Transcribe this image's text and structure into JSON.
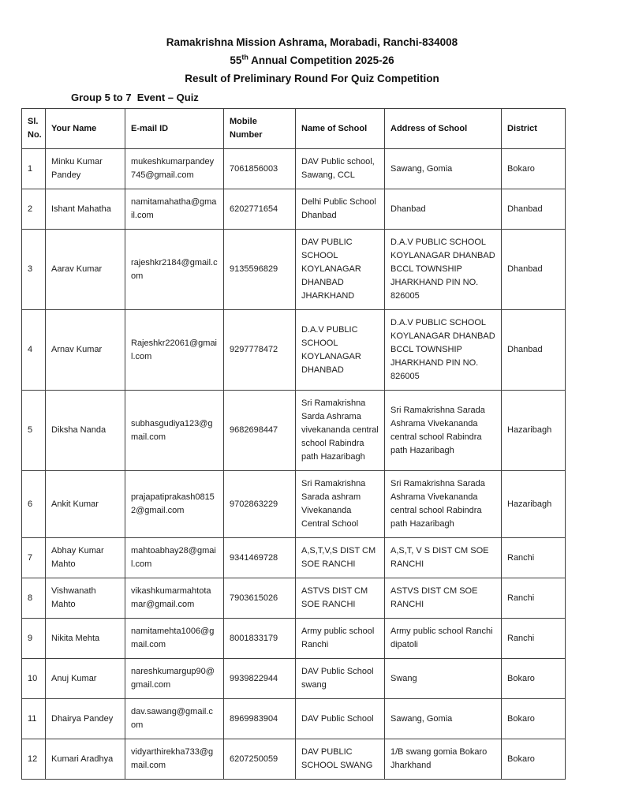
{
  "header": {
    "title_line1": "Ramakrishna Mission Ashrama, Morabadi, Ranchi-834008",
    "title_line2_num": "55",
    "title_line2_sup": "th",
    "title_line2_rest": " Annual Competition 2025-26",
    "title_line3": "Result of Preliminary Round For Quiz Competition",
    "group_line": "Group 5 to 7  Event – Quiz"
  },
  "table": {
    "columns": {
      "sl": "Sl. No.",
      "name": "Your Name",
      "email": "E-mail ID",
      "mobile": "Mobile Number",
      "school": "Name of School",
      "address": "Address of  School",
      "district": "District"
    },
    "rows": [
      {
        "sl": "1",
        "name": "Minku Kumar Pandey",
        "email": "mukeshkumarpandey745@gmail.com",
        "mobile": "7061856003",
        "school": "DAV Public school, Sawang, CCL",
        "address": "Sawang, Gomia",
        "district": "Bokaro"
      },
      {
        "sl": "2",
        "name": "Ishant Mahatha",
        "email": "namitamahatha@gmail.com",
        "mobile": "6202771654",
        "school": "Delhi Public School Dhanbad",
        "address": "Dhanbad",
        "district": "Dhanbad"
      },
      {
        "sl": "3",
        "name": "Aarav Kumar",
        "email": "rajeshkr2184@gmail.com",
        "mobile": "9135596829",
        "school": "DAV PUBLIC SCHOOL KOYLANAGAR DHANBAD JHARKHAND",
        "address": "D.A.V PUBLIC SCHOOL KOYLANAGAR DHANBAD BCCL TOWNSHIP JHARKHAND PIN NO. 826005",
        "district": "Dhanbad"
      },
      {
        "sl": "4",
        "name": "Arnav Kumar",
        "email": "Rajeshkr22061@gmail.com",
        "mobile": "9297778472",
        "school": "D.A.V PUBLIC SCHOOL KOYLANAGAR DHANBAD",
        "address": "D.A.V PUBLIC SCHOOL KOYLANAGAR DHANBAD BCCL TOWNSHIP JHARKHAND PIN NO. 826005",
        "district": "Dhanbad"
      },
      {
        "sl": "5",
        "name": "Diksha Nanda",
        "email": "subhasgudiya123@gmail.com",
        "mobile": "9682698447",
        "school": "Sri Ramakrishna Sarda Ashrama vivekananda central school Rabindra path Hazaribagh",
        "address": "Sri Ramakrishna Sarada Ashrama Vivekananda central school Rabindra path Hazaribagh",
        "district": "Hazaribagh"
      },
      {
        "sl": "6",
        "name": "Ankit Kumar",
        "email": "prajapatiprakash08152@gmail.com",
        "mobile": "9702863229",
        "school": "Sri Ramakrishna Sarada ashram Vivekananda Central School",
        "address": "Sri Ramakrishna Sarada Ashrama Vivekananda central school Rabindra path Hazaribagh",
        "district": "Hazaribagh"
      },
      {
        "sl": "7",
        "name": "Abhay Kumar Mahto",
        "email": "mahtoabhay28@gmail.com",
        "mobile": "9341469728",
        "school": "A,S,T,V,S DIST CM SOE RANCHI",
        "address": "A,S,T, V S DIST CM SOE RANCHI",
        "district": "Ranchi"
      },
      {
        "sl": "8",
        "name": "Vishwanath Mahto",
        "email": "vikashkumarmahtotamar@gmail.com",
        "mobile": "7903615026",
        "school": "ASTVS DIST CM SOE RANCHI",
        "address": "ASTVS DIST CM SOE RANCHI",
        "district": "Ranchi"
      },
      {
        "sl": "9",
        "name": "Nikita Mehta",
        "email": "namitamehta1006@gmail.com",
        "mobile": "8001833179",
        "school": "Army public school Ranchi",
        "address": "Army public school Ranchi dipatoli",
        "district": "Ranchi"
      },
      {
        "sl": "10",
        "name": "Anuj Kumar",
        "email": "nareshkumargup90@gmail.com",
        "mobile": "9939822944",
        "school": "DAV Public School swang",
        "address": "Swang",
        "district": "Bokaro"
      },
      {
        "sl": "11",
        "name": "Dhairya Pandey",
        "email": "dav.sawang@gmail.com",
        "mobile": "8969983904",
        "school": "DAV Public School",
        "address": "Sawang, Gomia",
        "district": "Bokaro"
      },
      {
        "sl": "12",
        "name": "Kumari Aradhya",
        "email": "vidyarthirekha733@gmail.com",
        "mobile": "6207250059",
        "school": "DAV PUBLIC SCHOOL SWANG",
        "address": "1/B swang gomia Bokaro Jharkhand",
        "district": "Bokaro"
      }
    ]
  }
}
